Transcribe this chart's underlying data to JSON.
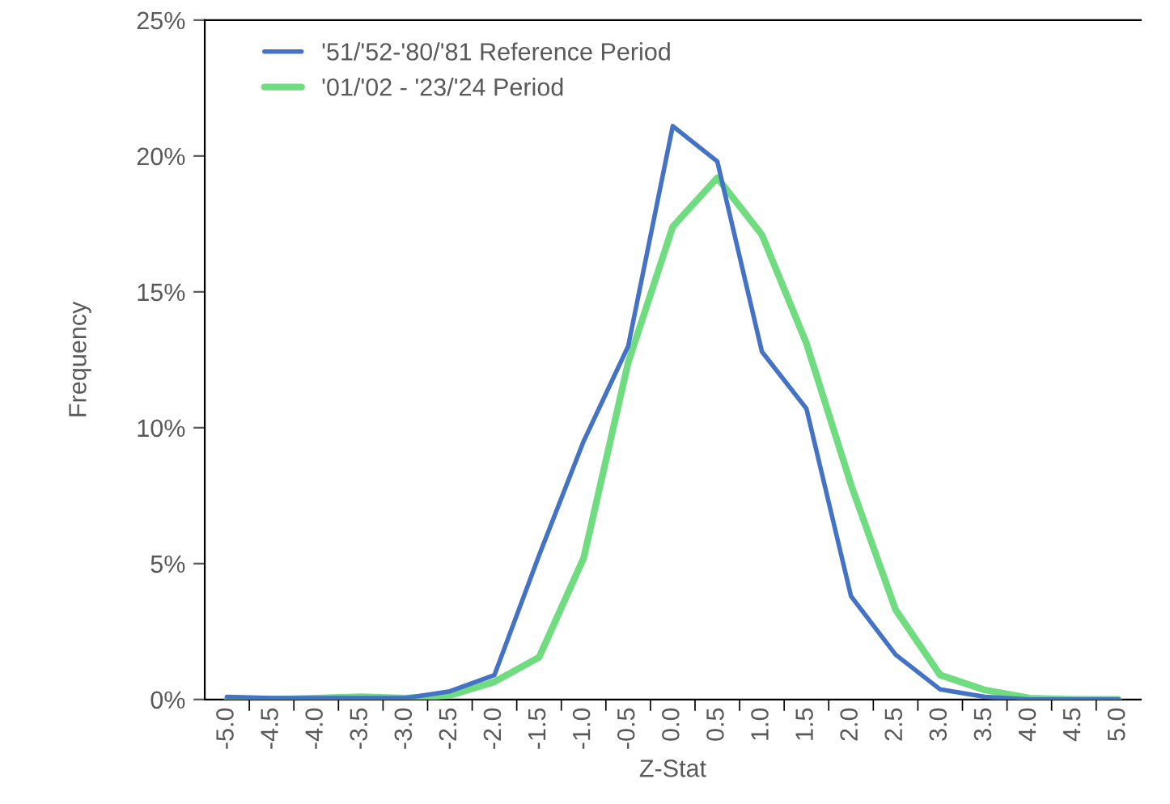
{
  "chart_data": {
    "type": "line",
    "xlabel": "Z-Stat",
    "ylabel": "Frequency",
    "categories": [
      "-5.0",
      "-4.5",
      "-4.0",
      "-3.5",
      "-3.0",
      "-2.5",
      "-2.0",
      "-1.5",
      "-1.0",
      "-0.5",
      "0.0",
      "0.5",
      "1.0",
      "1.5",
      "2.0",
      "2.5",
      "3.0",
      "3.5",
      "4.0",
      "4.5",
      "5.0"
    ],
    "series": [
      {
        "name": "'51/'52-'80/'81 Reference Period",
        "color": "#4472c4",
        "values": [
          0.1,
          0.05,
          0.05,
          0.05,
          0.05,
          0.3,
          0.9,
          5.3,
          9.5,
          13.0,
          21.1,
          19.8,
          12.8,
          10.7,
          3.8,
          1.65,
          0.37,
          0.1,
          0,
          0,
          0
        ]
      },
      {
        "name": "'01/'02 - '23/'24 Period",
        "color": "#6fdc7f",
        "values": [
          0,
          0,
          0.05,
          0.1,
          0.05,
          0.15,
          0.65,
          1.55,
          5.2,
          12.4,
          17.4,
          19.2,
          17.1,
          13.1,
          7.9,
          3.3,
          0.9,
          0.35,
          0.05,
          0,
          0
        ]
      }
    ],
    "ylim": [
      0,
      25
    ],
    "yticks": [
      {
        "value": 0,
        "label": "0%"
      },
      {
        "value": 5,
        "label": "5%"
      },
      {
        "value": 10,
        "label": "10%"
      },
      {
        "value": 15,
        "label": "15%"
      },
      {
        "value": 20,
        "label": "20%"
      },
      {
        "value": 25,
        "label": "25%"
      }
    ],
    "grid": false,
    "legend": "top left",
    "marker": "none",
    "line_style": "solid"
  }
}
